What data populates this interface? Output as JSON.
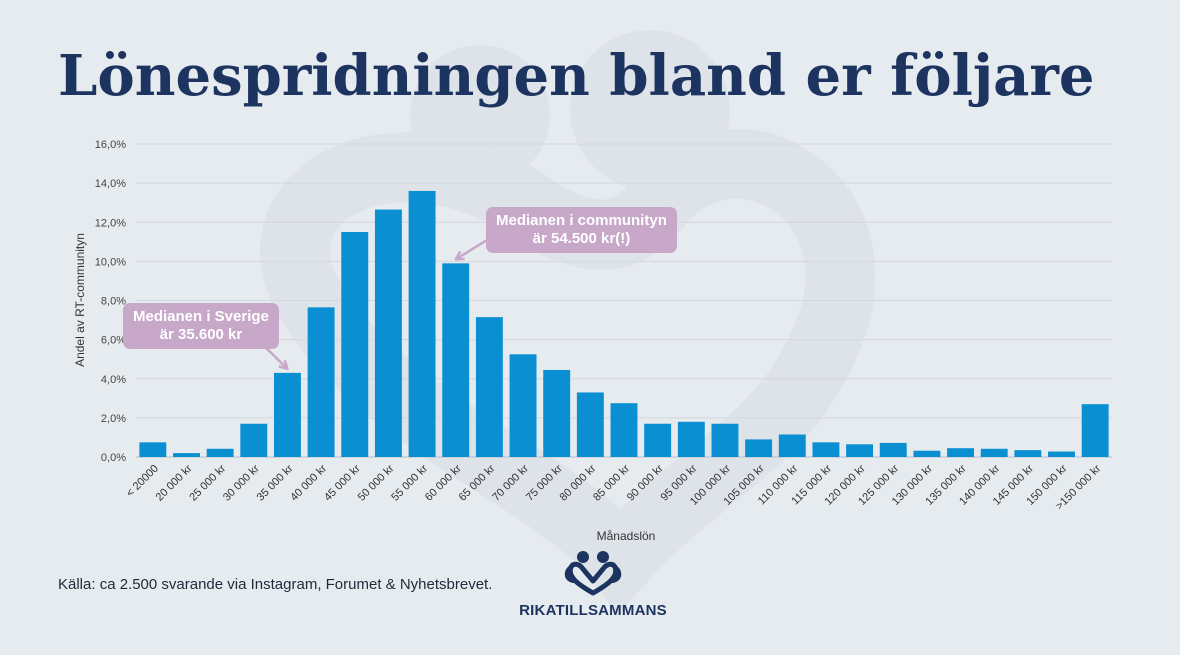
{
  "title": "Lönespridningen bland er följare",
  "source": "Källa: ca 2.500 svarande via Instagram, Forumet & Nyhetsbrevet.",
  "logo_text": "RIKATILLSAMMANS",
  "logo_icon": "heart-people-icon",
  "colors": {
    "background": "#e6ebef",
    "bar": "#0b8fd3",
    "title": "#1d3461",
    "annotation": "#c7a8c9"
  },
  "chart_data": {
    "type": "bar",
    "xlabel": "Månadslön",
    "ylabel": "Andel av RT-communityn",
    "ylim": [
      0,
      16
    ],
    "yticks": [
      "0,0%",
      "2,0%",
      "4,0%",
      "6,0%",
      "8,0%",
      "10,0%",
      "12,0%",
      "14,0%",
      "16,0%"
    ],
    "grid": true,
    "categories": [
      "< 20000",
      "20 000 kr",
      "25 000 kr",
      "30 000 kr",
      "35 000 kr",
      "40 000 kr",
      "45 000 kr",
      "50 000 kr",
      "55 000 kr",
      "60 000 kr",
      "65 000 kr",
      "70 000 kr",
      "75 000 kr",
      "80 000 kr",
      "85 000 kr",
      "90 000 kr",
      "95 000 kr",
      "100 000 kr",
      "105 000 kr",
      "110 000 kr",
      "115 000 kr",
      "120 000 kr",
      "125 000 kr",
      "130 000 kr",
      "135 000 kr",
      "140 000 kr",
      "145 000 kr",
      "150 000 kr",
      ">150 000 kr"
    ],
    "values": [
      0.75,
      0.2,
      0.42,
      1.7,
      4.3,
      7.65,
      11.5,
      12.65,
      13.6,
      9.9,
      7.15,
      5.25,
      4.45,
      3.3,
      2.75,
      1.7,
      1.8,
      1.7,
      0.9,
      1.15,
      0.75,
      0.65,
      0.72,
      0.32,
      0.45,
      0.42,
      0.35,
      0.28,
      2.7
    ],
    "annotations": [
      {
        "line1": "Medianen i Sverige",
        "line2": "är 35.600 kr",
        "target_index": 4
      },
      {
        "line1": "Medianen i communityn",
        "line2": "är 54.500 kr(!)",
        "target_index": 9
      }
    ]
  }
}
